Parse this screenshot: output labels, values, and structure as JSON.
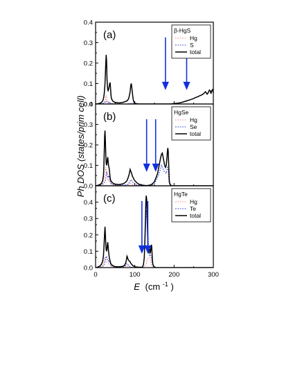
{
  "figure": {
    "ylabel": "Ph DOS (states/prim cell)",
    "xlabel_main": "E",
    "xlabel_unit": "(cm",
    "xlabel_sup": "-1",
    "xlabel_close": ")",
    "xticks": [
      "0",
      "100",
      "200",
      "300"
    ]
  },
  "chart_data": [
    {
      "type": "line",
      "panel_label": "(a)",
      "material": "β-HgS",
      "xlim": [
        0,
        300
      ],
      "ylim": [
        0,
        0.4
      ],
      "yticks": [
        "0.0",
        "0.1",
        "0.2",
        "0.3",
        "0.4"
      ],
      "legend": [
        "Hg",
        "S",
        "total"
      ],
      "arrows_x": [
        178,
        232
      ],
      "series": [
        {
          "name": "Hg",
          "color": "#ff8080",
          "style": "dotted",
          "x": [
            0,
            10,
            18,
            22,
            25,
            26,
            27,
            28,
            30,
            32,
            34,
            36,
            38,
            40,
            45,
            50,
            60,
            80,
            100,
            120,
            300
          ],
          "y": [
            0,
            0,
            0.003,
            0.008,
            0.02,
            0.035,
            0.045,
            0.025,
            0.015,
            0.01,
            0.012,
            0.008,
            0.004,
            0.002,
            0.001,
            0.0005,
            0,
            0,
            0,
            0,
            0
          ]
        },
        {
          "name": "S",
          "color": "#2233cc",
          "style": "dotted",
          "x": [
            0,
            18,
            22,
            25,
            26,
            27,
            28,
            30,
            32,
            34,
            36,
            38,
            40,
            45,
            60,
            80,
            90,
            92,
            94,
            100,
            300
          ],
          "y": [
            0,
            0.002,
            0.005,
            0.01,
            0.012,
            0.015,
            0.012,
            0.008,
            0.006,
            0.01,
            0.007,
            0.003,
            0.002,
            0.001,
            0,
            0,
            0.002,
            0.004,
            0.003,
            0,
            0
          ]
        },
        {
          "name": "total",
          "color": "#000000",
          "style": "solid",
          "x": [
            0,
            5,
            10,
            15,
            18,
            20,
            22,
            24,
            25,
            26,
            27,
            28,
            29,
            30,
            31,
            32,
            33,
            34,
            35,
            36,
            37,
            38,
            39,
            40,
            42,
            45,
            50,
            60,
            70,
            80,
            84,
            86,
            88,
            89,
            90,
            91,
            92,
            94,
            96,
            98,
            100,
            110,
            150,
            170,
            180,
            190,
            195,
            200,
            210,
            220,
            230,
            240,
            250,
            255,
            260,
            265,
            270,
            275,
            278,
            280,
            282,
            284,
            286,
            288,
            290,
            292,
            294,
            296,
            298,
            300
          ],
          "y": [
            0,
            0.001,
            0.003,
            0.008,
            0.015,
            0.025,
            0.05,
            0.1,
            0.15,
            0.2,
            0.24,
            0.21,
            0.13,
            0.09,
            0.07,
            0.065,
            0.07,
            0.08,
            0.09,
            0.1,
            0.105,
            0.08,
            0.05,
            0.03,
            0.02,
            0.012,
            0.008,
            0.005,
            0.008,
            0.015,
            0.025,
            0.04,
            0.06,
            0.08,
            0.095,
            0.1,
            0.085,
            0.05,
            0.02,
            0.008,
            0.003,
            0,
            0,
            0,
            0,
            0,
            0.001,
            0.002,
            0.004,
            0.008,
            0.014,
            0.02,
            0.027,
            0.032,
            0.035,
            0.04,
            0.044,
            0.05,
            0.056,
            0.06,
            0.055,
            0.048,
            0.052,
            0.06,
            0.068,
            0.065,
            0.05,
            0.065,
            0.07,
            0.055
          ]
        }
      ]
    },
    {
      "type": "line",
      "panel_label": "(b)",
      "material": "HgSe",
      "xlim": [
        0,
        300
      ],
      "ylim": [
        0,
        0.4
      ],
      "yticks": [
        "0.0",
        "0.1",
        "0.2",
        "0.3",
        "0.4"
      ],
      "legend": [
        "Hg",
        "Se",
        "total"
      ],
      "arrows_x": [
        130,
        153
      ],
      "series": [
        {
          "name": "Hg",
          "color": "#ff8080",
          "style": "dotted",
          "x": [
            0,
            10,
            15,
            18,
            20,
            22,
            24,
            26,
            28,
            30,
            32,
            34,
            36,
            40,
            45,
            50,
            70,
            80,
            85,
            88,
            90,
            92,
            95,
            100,
            150,
            300
          ],
          "y": [
            0,
            0.002,
            0.006,
            0.012,
            0.025,
            0.045,
            0.07,
            0.09,
            0.06,
            0.035,
            0.025,
            0.03,
            0.02,
            0.008,
            0.003,
            0.001,
            0,
            0.002,
            0.006,
            0.01,
            0.012,
            0.008,
            0.003,
            0.001,
            0,
            0
          ]
        },
        {
          "name": "Se",
          "color": "#2233cc",
          "style": "dotted",
          "x": [
            0,
            15,
            20,
            24,
            26,
            28,
            30,
            32,
            34,
            36,
            40,
            50,
            80,
            86,
            90,
            94,
            100,
            120,
            140,
            150,
            155,
            160,
            165,
            168,
            170,
            175,
            180,
            183,
            185,
            187,
            190,
            200,
            300
          ],
          "y": [
            0,
            0.004,
            0.01,
            0.02,
            0.04,
            0.07,
            0.06,
            0.04,
            0.05,
            0.03,
            0.01,
            0.002,
            0.005,
            0.015,
            0.03,
            0.02,
            0.005,
            0,
            0.002,
            0.01,
            0.03,
            0.05,
            0.08,
            0.1,
            0.09,
            0.07,
            0.06,
            0.09,
            0.08,
            0.02,
            0,
            0,
            0
          ]
        },
        {
          "name": "total",
          "color": "#000000",
          "style": "solid",
          "x": [
            0,
            5,
            10,
            15,
            18,
            20,
            21,
            22,
            23,
            24,
            25,
            26,
            27,
            28,
            29,
            30,
            31,
            32,
            33,
            34,
            35,
            36,
            37,
            38,
            40,
            45,
            50,
            60,
            70,
            75,
            80,
            83,
            86,
            88,
            90,
            92,
            94,
            96,
            98,
            100,
            105,
            110,
            120,
            130,
            140,
            145,
            150,
            152,
            154,
            156,
            158,
            160,
            162,
            164,
            166,
            168,
            170,
            172,
            174,
            176,
            178,
            180,
            182,
            183,
            184,
            185,
            186,
            187,
            188,
            190,
            195,
            200,
            300
          ],
          "y": [
            0,
            0.002,
            0.005,
            0.012,
            0.025,
            0.05,
            0.09,
            0.16,
            0.24,
            0.27,
            0.22,
            0.15,
            0.11,
            0.1,
            0.11,
            0.13,
            0.14,
            0.12,
            0.1,
            0.09,
            0.08,
            0.06,
            0.04,
            0.03,
            0.02,
            0.012,
            0.008,
            0.006,
            0.01,
            0.015,
            0.025,
            0.04,
            0.06,
            0.08,
            0.07,
            0.06,
            0.045,
            0.04,
            0.03,
            0.025,
            0.015,
            0.008,
            0.003,
            0.001,
            0.004,
            0.01,
            0.02,
            0.03,
            0.04,
            0.05,
            0.06,
            0.08,
            0.1,
            0.12,
            0.14,
            0.155,
            0.16,
            0.14,
            0.12,
            0.1,
            0.09,
            0.1,
            0.14,
            0.17,
            0.185,
            0.17,
            0.12,
            0.06,
            0.02,
            0.005,
            0,
            0,
            0
          ]
        }
      ]
    },
    {
      "type": "line",
      "panel_label": "(c)",
      "material": "HgTe",
      "xlim": [
        0,
        300
      ],
      "ylim": [
        0,
        0.5
      ],
      "yticks": [
        "0.0",
        "0.1",
        "0.2",
        "0.3",
        "0.4"
      ],
      "legend": [
        "Hg",
        "Te",
        "total"
      ],
      "arrows_x": [
        118,
        133
      ],
      "series": [
        {
          "name": "Hg",
          "color": "#ff8080",
          "style": "dotted",
          "x": [
            0,
            10,
            15,
            18,
            20,
            22,
            24,
            26,
            28,
            30,
            32,
            34,
            36,
            40,
            45,
            50,
            70,
            75,
            78,
            80,
            82,
            85,
            90,
            100,
            120,
            125,
            128,
            130,
            132,
            135,
            138,
            140,
            142,
            145,
            150,
            300
          ],
          "y": [
            0,
            0.003,
            0.008,
            0.015,
            0.03,
            0.05,
            0.065,
            0.05,
            0.035,
            0.03,
            0.025,
            0.02,
            0.015,
            0.008,
            0.003,
            0.001,
            0,
            0.005,
            0.01,
            0.012,
            0.008,
            0.004,
            0.001,
            0,
            0,
            0.005,
            0.02,
            0.03,
            0.05,
            0.06,
            0.06,
            0.05,
            0.02,
            0.005,
            0,
            0
          ]
        },
        {
          "name": "Te",
          "color": "#2233cc",
          "style": "dotted",
          "x": [
            0,
            15,
            20,
            22,
            24,
            26,
            28,
            30,
            32,
            34,
            36,
            40,
            50,
            70,
            75,
            78,
            80,
            82,
            85,
            90,
            100,
            120,
            122,
            124,
            126,
            128,
            130,
            132,
            134,
            136,
            138,
            140,
            142,
            145,
            150,
            300
          ],
          "y": [
            0,
            0.004,
            0.01,
            0.02,
            0.04,
            0.06,
            0.07,
            0.05,
            0.04,
            0.045,
            0.03,
            0.012,
            0.003,
            0.002,
            0.01,
            0.02,
            0.025,
            0.02,
            0.01,
            0.004,
            0.001,
            0.002,
            0.02,
            0.06,
            0.15,
            0.28,
            0.35,
            0.3,
            0.2,
            0.08,
            0.07,
            0.075,
            0.07,
            0.02,
            0,
            0
          ]
        },
        {
          "name": "total",
          "color": "#000000",
          "style": "solid",
          "x": [
            0,
            5,
            10,
            15,
            18,
            20,
            21,
            22,
            23,
            24,
            25,
            26,
            27,
            28,
            29,
            30,
            31,
            32,
            33,
            34,
            35,
            36,
            38,
            40,
            45,
            50,
            60,
            70,
            74,
            76,
            78,
            79,
            80,
            81,
            82,
            84,
            86,
            88,
            90,
            95,
            100,
            110,
            118,
            120,
            122,
            124,
            125,
            126,
            127,
            128,
            129,
            130,
            131,
            132,
            133,
            134,
            135,
            136,
            137,
            138,
            139,
            140,
            141,
            142,
            143,
            144,
            145,
            146,
            148,
            150,
            155,
            300
          ],
          "y": [
            0,
            0.003,
            0.008,
            0.02,
            0.04,
            0.07,
            0.11,
            0.16,
            0.21,
            0.25,
            0.2,
            0.14,
            0.11,
            0.1,
            0.11,
            0.14,
            0.155,
            0.13,
            0.1,
            0.08,
            0.06,
            0.05,
            0.03,
            0.02,
            0.01,
            0.006,
            0.005,
            0.008,
            0.015,
            0.025,
            0.04,
            0.055,
            0.07,
            0.065,
            0.055,
            0.045,
            0.04,
            0.035,
            0.025,
            0.012,
            0.005,
            0.002,
            0.002,
            0.006,
            0.02,
            0.06,
            0.12,
            0.2,
            0.3,
            0.4,
            0.44,
            0.42,
            0.35,
            0.25,
            0.15,
            0.1,
            0.09,
            0.11,
            0.12,
            0.11,
            0.09,
            0.095,
            0.12,
            0.14,
            0.13,
            0.08,
            0.04,
            0.02,
            0.008,
            0.003,
            0,
            0
          ]
        }
      ]
    }
  ]
}
